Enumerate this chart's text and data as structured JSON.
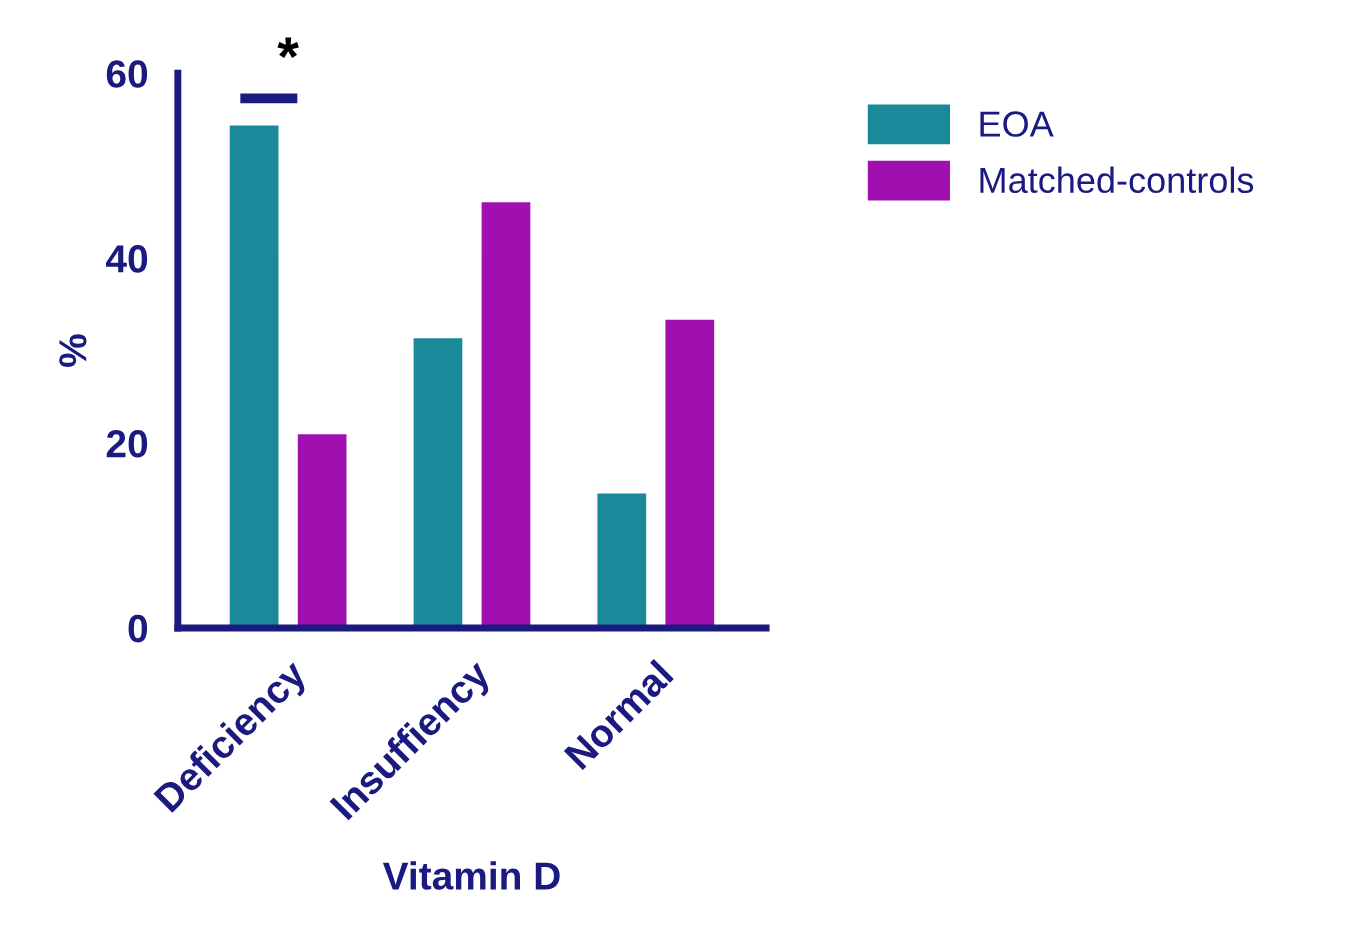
{
  "chart_data": {
    "type": "bar",
    "xlabel": "Vitamin D",
    "ylabel": "%",
    "categories": [
      "Deficiency",
      "Insuffiency",
      "Normal"
    ],
    "series": [
      {
        "name": "EOA",
        "color": "#1a8a9a",
        "values": [
          54.2,
          31.2,
          14.4
        ]
      },
      {
        "name": "Matched-controls",
        "color": "#a010b0",
        "values": [
          20.8,
          45.9,
          33.2
        ]
      }
    ],
    "ylim": [
      0,
      60
    ],
    "yticks": [
      0,
      20,
      40,
      60
    ],
    "grid": false,
    "legend": "top right",
    "annotations": [
      "*"
    ]
  }
}
